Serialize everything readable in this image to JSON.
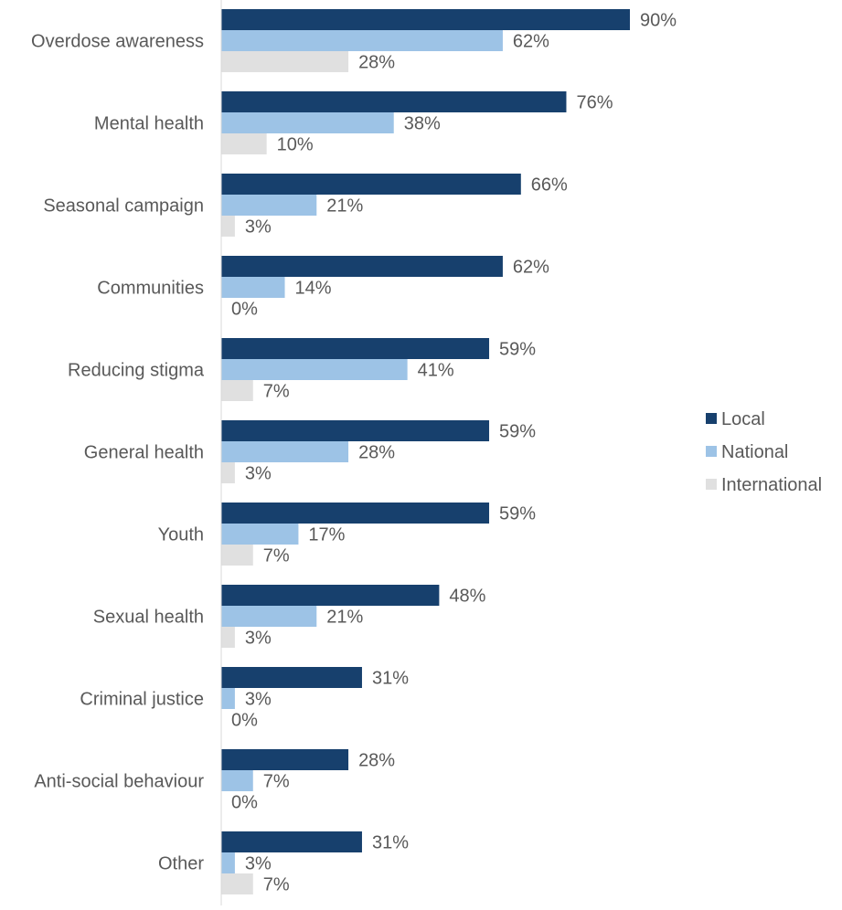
{
  "chart_data": {
    "type": "bar",
    "orientation": "horizontal",
    "title": "",
    "xlabel": "",
    "ylabel": "",
    "xlim": [
      0,
      100
    ],
    "value_format": "percent",
    "grid": false,
    "legend_position": "right",
    "categories": [
      "Overdose awareness",
      "Mental health",
      "Seasonal campaign",
      "Communities",
      "Reducing stigma",
      "General health",
      "Youth",
      "Sexual health",
      "Criminal justice",
      "Anti-social behaviour",
      "Other"
    ],
    "series": [
      {
        "name": "Local",
        "color": "#17406D",
        "values": [
          90,
          76,
          66,
          62,
          59,
          59,
          59,
          48,
          31,
          28,
          31
        ]
      },
      {
        "name": "National",
        "color": "#9DC3E6",
        "values": [
          62,
          38,
          21,
          14,
          41,
          28,
          17,
          21,
          3,
          7,
          3
        ]
      },
      {
        "name": "International",
        "color": "#E0E0E0",
        "values": [
          28,
          10,
          3,
          0,
          7,
          3,
          7,
          3,
          0,
          0,
          7
        ]
      }
    ]
  }
}
